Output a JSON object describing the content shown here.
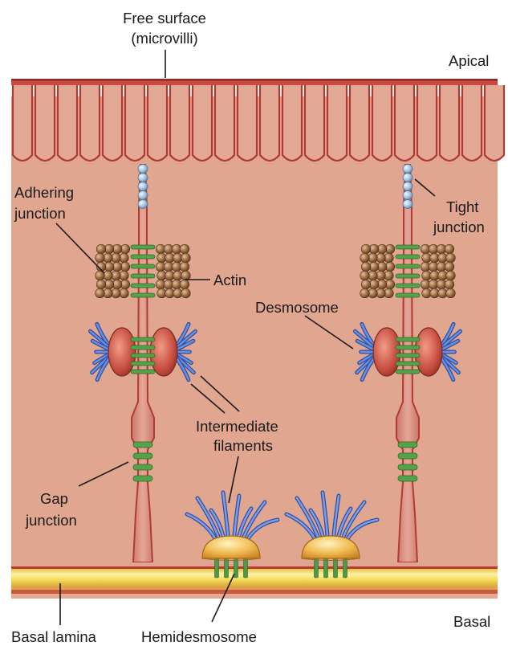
{
  "labels": {
    "free_surface_line1": "Free surface",
    "free_surface_line2": "(microvilli)",
    "apical": "Apical",
    "adhering_line1": "Adhering",
    "adhering_line2": "junction",
    "tight_line1": "Tight",
    "tight_line2": "junction",
    "actin": "Actin",
    "desmosome": "Desmosome",
    "intermediate_line1": "Intermediate",
    "intermediate_line2": "filaments",
    "gap_line1": "Gap",
    "gap_line2": "junction",
    "basal_lamina": "Basal lamina",
    "hemidesmosome": "Hemidesmosome",
    "basal": "Basal"
  },
  "colors": {
    "cytoplasm": "#e0a590",
    "membrane": "#b23a35",
    "lamina_yellow": "#f4dc52",
    "actin_bead": "#8a5f3c",
    "tight_bead": "#9fc0dc",
    "junction_protein": "#4f9a48",
    "filament": "#4c70c4",
    "desmosome_plaque": "#c24a3c",
    "hemidesmosome_plaque": "#ecae40"
  }
}
